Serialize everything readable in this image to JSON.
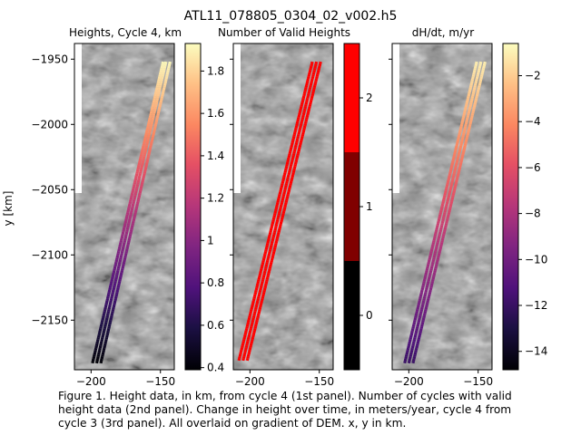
{
  "figure": {
    "suptitle": "ATL11_078805_0304_02_v002.h5",
    "caption": "Figure 1. Height data, in km, from cycle 4 (1st panel). Number of cycles with valid\nheight data (2nd panel). Change in height over time, in meters/year, cycle 4 from\ncycle 3 (3rd panel). All overlaid on gradient of DEM. x, y in km."
  },
  "chart_data": [
    {
      "type": "scatter",
      "title": "Heights, Cycle 4, km",
      "ylabel": "y [km]",
      "xlim": [
        -212,
        -140
      ],
      "ylim": [
        -2188,
        -1938
      ],
      "xticks": [
        -200,
        -150
      ],
      "yticks": [
        -1950,
        -2000,
        -2050,
        -2100,
        -2150
      ],
      "background": "gradient of DEM (grayscale)",
      "colormap": "magma",
      "colorbar": {
        "min": 0.39,
        "max": 1.93,
        "ticks": [
          0.4,
          0.6,
          0.8,
          1.0,
          1.2,
          1.4,
          1.6,
          1.8
        ]
      },
      "series": [
        {
          "x": [
            -199,
            -148
          ],
          "y": [
            -2183,
            -1952
          ],
          "c": [
            0.4,
            1.92
          ]
        },
        {
          "x": [
            -196,
            -146
          ],
          "y": [
            -2183,
            -1952
          ],
          "c": [
            0.4,
            1.92
          ]
        },
        {
          "x": [
            -193,
            -143
          ],
          "y": [
            -2183,
            -1952
          ],
          "c": [
            0.4,
            1.92
          ]
        }
      ]
    },
    {
      "type": "scatter",
      "title": "Number of Valid Heights",
      "xlim": [
        -212,
        -140
      ],
      "ylim": [
        -2188,
        -1938
      ],
      "xticks": [
        -200,
        -150
      ],
      "background": "gradient of DEM (grayscale)",
      "colormap": "discrete black-darkred-red",
      "colorbar": {
        "min": -0.5,
        "max": 2.5,
        "ticks": [
          0,
          1,
          2
        ],
        "colors": [
          "#000000",
          "#800000",
          "#ff0000"
        ]
      },
      "series": [
        {
          "x": [
            -208,
            -155
          ],
          "y": [
            -2181,
            -1952
          ],
          "value": 2
        },
        {
          "x": [
            -205,
            -152
          ],
          "y": [
            -2181,
            -1952
          ],
          "value": 2
        },
        {
          "x": [
            -202,
            -149
          ],
          "y": [
            -2181,
            -1952
          ],
          "value": 2
        }
      ]
    },
    {
      "type": "scatter",
      "title": "dH/dt, m/yr",
      "xlim": [
        -212,
        -140
      ],
      "ylim": [
        -2188,
        -1938
      ],
      "xticks": [
        -200,
        -150
      ],
      "background": "gradient of DEM (grayscale)",
      "colormap": "magma",
      "colorbar": {
        "min": -14.8,
        "max": -0.6,
        "ticks": [
          -2,
          -4,
          -6,
          -8,
          -10,
          -12,
          -14
        ]
      },
      "series": [
        {
          "x": [
            -203,
            -151
          ],
          "y": [
            -2183,
            -1952
          ],
          "c": [
            -12,
            -1
          ]
        },
        {
          "x": [
            -200,
            -148
          ],
          "y": [
            -2183,
            -1952
          ],
          "c": [
            -12,
            -1
          ]
        },
        {
          "x": [
            -197,
            -145
          ],
          "y": [
            -2183,
            -1952
          ],
          "c": [
            -12,
            -1
          ]
        }
      ]
    }
  ]
}
